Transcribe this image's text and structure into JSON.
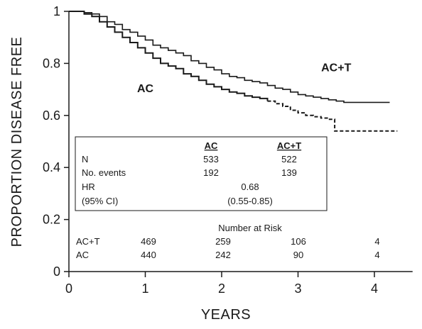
{
  "chart_data": {
    "type": "line",
    "title": "",
    "xlabel": "YEARS",
    "ylabel": "PROPORTION DISEASE FREE",
    "xlim": [
      0,
      4.5
    ],
    "ylim": [
      0,
      1
    ],
    "xticks": [
      0,
      1,
      2,
      3,
      4
    ],
    "yticks": [
      0,
      0.2,
      0.4,
      0.6,
      0.8,
      1
    ],
    "xtick_labels": [
      "0",
      "1",
      "2",
      "3",
      "4"
    ],
    "ytick_labels": [
      "0",
      "0.2",
      "0.4",
      "0.6",
      "0.8",
      "1"
    ],
    "grid": false,
    "series": [
      {
        "name": "AC+T",
        "line_style": "solid",
        "color": "#1a1a1a",
        "points": [
          [
            0,
            1
          ],
          [
            0.1,
            1
          ],
          [
            0.2,
            0.995
          ],
          [
            0.3,
            0.99
          ],
          [
            0.4,
            0.98
          ],
          [
            0.5,
            0.96
          ],
          [
            0.6,
            0.95
          ],
          [
            0.7,
            0.93
          ],
          [
            0.8,
            0.92
          ],
          [
            0.9,
            0.905
          ],
          [
            1.0,
            0.89
          ],
          [
            1.1,
            0.87
          ],
          [
            1.2,
            0.86
          ],
          [
            1.3,
            0.85
          ],
          [
            1.4,
            0.84
          ],
          [
            1.5,
            0.83
          ],
          [
            1.6,
            0.81
          ],
          [
            1.7,
            0.8
          ],
          [
            1.8,
            0.785
          ],
          [
            1.9,
            0.775
          ],
          [
            2.0,
            0.76
          ],
          [
            2.1,
            0.75
          ],
          [
            2.2,
            0.745
          ],
          [
            2.3,
            0.735
          ],
          [
            2.4,
            0.73
          ],
          [
            2.5,
            0.725
          ],
          [
            2.6,
            0.715
          ],
          [
            2.7,
            0.705
          ],
          [
            2.8,
            0.7
          ],
          [
            2.9,
            0.69
          ],
          [
            3.0,
            0.68
          ],
          [
            3.1,
            0.675
          ],
          [
            3.2,
            0.67
          ],
          [
            3.3,
            0.665
          ],
          [
            3.4,
            0.66
          ],
          [
            3.5,
            0.655
          ],
          [
            3.6,
            0.65
          ],
          [
            3.8,
            0.65
          ],
          [
            4.0,
            0.65
          ],
          [
            4.2,
            0.65
          ]
        ]
      },
      {
        "name": "AC",
        "line_style": "solid-then-dashed",
        "dash_from_x": 2.6,
        "color": "#1a1a1a",
        "points": [
          [
            0,
            1
          ],
          [
            0.1,
            1
          ],
          [
            0.2,
            0.99
          ],
          [
            0.3,
            0.98
          ],
          [
            0.4,
            0.96
          ],
          [
            0.5,
            0.94
          ],
          [
            0.6,
            0.92
          ],
          [
            0.7,
            0.9
          ],
          [
            0.8,
            0.88
          ],
          [
            0.9,
            0.86
          ],
          [
            1.0,
            0.84
          ],
          [
            1.1,
            0.82
          ],
          [
            1.2,
            0.8
          ],
          [
            1.3,
            0.79
          ],
          [
            1.4,
            0.78
          ],
          [
            1.5,
            0.76
          ],
          [
            1.6,
            0.75
          ],
          [
            1.7,
            0.735
          ],
          [
            1.8,
            0.72
          ],
          [
            1.9,
            0.71
          ],
          [
            2.0,
            0.7
          ],
          [
            2.1,
            0.69
          ],
          [
            2.2,
            0.685
          ],
          [
            2.3,
            0.675
          ],
          [
            2.4,
            0.67
          ],
          [
            2.5,
            0.665
          ],
          [
            2.6,
            0.655
          ],
          [
            2.7,
            0.645
          ],
          [
            2.8,
            0.635
          ],
          [
            2.9,
            0.62
          ],
          [
            3.0,
            0.61
          ],
          [
            3.1,
            0.6
          ],
          [
            3.2,
            0.595
          ],
          [
            3.3,
            0.59
          ],
          [
            3.4,
            0.585
          ],
          [
            3.45,
            0.585
          ],
          [
            3.48,
            0.54
          ],
          [
            3.6,
            0.54
          ],
          [
            3.8,
            0.54
          ],
          [
            4.0,
            0.54
          ],
          [
            4.2,
            0.54
          ],
          [
            4.3,
            0.54
          ]
        ]
      }
    ],
    "series_labels": [
      {
        "text": "AC+T",
        "x": 3.5,
        "y": 0.77
      },
      {
        "text": "AC",
        "x": 1.0,
        "y": 0.69
      }
    ],
    "summary_table": {
      "columns": [
        "",
        "AC",
        "AC+T"
      ],
      "rows": [
        {
          "label": "N",
          "ac": "533",
          "act": "522",
          "shared": ""
        },
        {
          "label": "No. events",
          "ac": "192",
          "act": "139",
          "shared": ""
        },
        {
          "label": "HR",
          "ac": "",
          "act": "",
          "shared": "0.68"
        },
        {
          "label": "(95% CI)",
          "ac": "",
          "act": "",
          "shared": "(0.55-0.85)"
        }
      ]
    },
    "number_at_risk": {
      "title": "Number at Risk",
      "rows": [
        {
          "label": "AC+T",
          "values": [
            "469",
            "259",
            "106",
            "4"
          ]
        },
        {
          "label": "AC",
          "values": [
            "440",
            "242",
            "90",
            "4"
          ]
        }
      ]
    }
  }
}
